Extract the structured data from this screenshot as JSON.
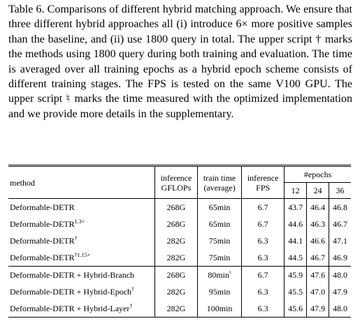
{
  "caption": "Table 6. Comparisons of different hybrid matching approach. We ensure that three different hybrid approaches all (i) introduce 6× more positive samples than the baseline, and (ii) use 1800 query in total. The upper script † marks the methods using 1800 query during both training and evaluation. The time is averaged over all training epochs as a hybrid epoch scheme consists of different training stages. The FPS is tested on the same V100 GPU. The upper script ♮ marks the time measured with the optimized implementation and we provide more details in the supplementary.",
  "table": {
    "header": {
      "method": "method",
      "gflops": [
        "inference",
        "GFLOPs"
      ],
      "time": [
        "train time",
        "(average)"
      ],
      "fps": [
        "inference",
        "FPS"
      ],
      "epochs": "#epochs",
      "epoch_list": [
        "12",
        "24",
        "36"
      ]
    },
    "rows": [
      {
        "method": "Deformable-DETR",
        "cells": [
          "268G",
          "65min",
          "6.7",
          "43.7",
          "46.4",
          "46.8"
        ]
      },
      {
        "method": "Deformable-DETR",
        "method_sup": "1.3×",
        "cells": [
          "268G",
          "65min",
          "6.7",
          "44.6",
          "46.3",
          "46.7"
        ]
      },
      {
        "method": "Deformable-DETR",
        "method_sup": "†",
        "cells": [
          "282G",
          "75min",
          "6.3",
          "44.1",
          "46.6",
          "47.1"
        ]
      },
      {
        "method": "Deformable-DETR",
        "method_sup": "†1.15×",
        "cells": [
          "282G",
          "75min",
          "6.3",
          "44.5",
          "46.7",
          "46.9"
        ]
      },
      {
        "method": "Deformable-DETR + Hybrid-Branch",
        "time_sup": "♮",
        "cells": [
          "268G",
          "80min",
          "6.7",
          "45.9",
          "47.6",
          "48.0"
        ]
      },
      {
        "method": "Deformable-DETR + Hybrid-Epoch",
        "method_sup": "†",
        "cells": [
          "282G",
          "95min",
          "6.3",
          "45.5",
          "47.0",
          "47.9"
        ]
      },
      {
        "method": "Deformable-DETR + Hybrid-Layer",
        "method_sup": "†",
        "cells": [
          "282G",
          "100min",
          "6.3",
          "45.6",
          "47.9",
          "48.0"
        ]
      }
    ]
  }
}
